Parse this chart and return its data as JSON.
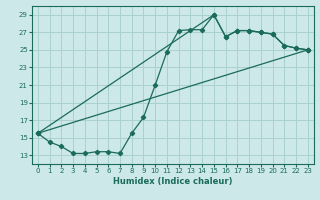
{
  "xlabel": "Humidex (Indice chaleur)",
  "ylabel": "",
  "bg_color": "#cce8e8",
  "grid_color": "#aad0d0",
  "line_color": "#1a6b5a",
  "xlim": [
    -0.5,
    23.5
  ],
  "ylim": [
    12,
    30
  ],
  "yticks": [
    13,
    15,
    17,
    19,
    21,
    23,
    25,
    27,
    29
  ],
  "xticks": [
    0,
    1,
    2,
    3,
    4,
    5,
    6,
    7,
    8,
    9,
    10,
    11,
    12,
    13,
    14,
    15,
    16,
    17,
    18,
    19,
    20,
    21,
    22,
    23
  ],
  "line1_x": [
    0,
    1,
    2,
    3,
    4,
    5,
    6,
    7,
    8,
    9,
    10,
    11,
    12,
    13,
    14,
    15,
    16,
    17,
    18,
    19,
    20,
    21,
    22,
    23
  ],
  "line1_y": [
    15.5,
    14.5,
    14.0,
    13.2,
    13.2,
    13.4,
    13.4,
    13.2,
    15.5,
    17.3,
    21.0,
    24.8,
    27.2,
    27.3,
    27.3,
    29.0,
    26.5,
    27.2,
    27.2,
    27.0,
    26.8,
    25.5,
    25.2,
    25.0
  ],
  "line2_x": [
    0,
    15,
    16,
    17,
    18,
    19,
    20,
    21,
    22,
    23
  ],
  "line2_y": [
    15.5,
    29.0,
    26.5,
    27.2,
    27.2,
    27.0,
    26.8,
    25.5,
    25.2,
    25.0
  ],
  "line3_x": [
    0,
    23
  ],
  "line3_y": [
    15.5,
    25.0
  ]
}
